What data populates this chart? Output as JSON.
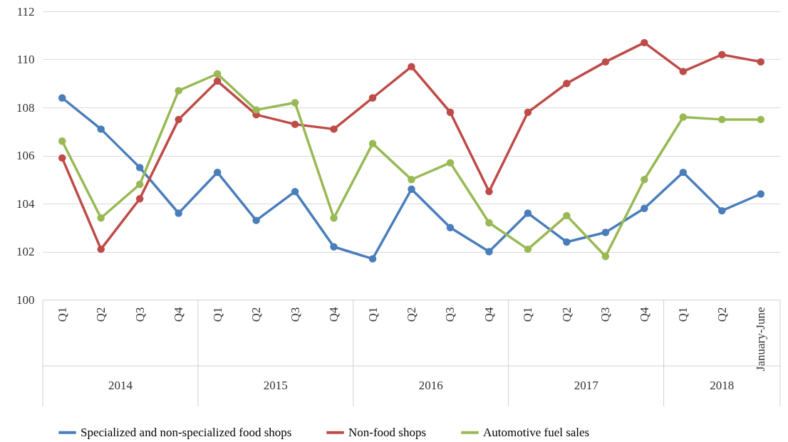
{
  "chart_data": {
    "type": "line",
    "categories": [
      "Q1",
      "Q2",
      "Q3",
      "Q4",
      "Q1",
      "Q2",
      "Q3",
      "Q4",
      "Q1",
      "Q2",
      "Q3",
      "Q4",
      "Q1",
      "Q2",
      "Q3",
      "Q4",
      "Q1",
      "Q2",
      "January-June"
    ],
    "annotations": [
      "2014",
      "2015",
      "2016",
      "2017",
      "2018"
    ],
    "series": [
      {
        "name": "Specialized and non-specialized food shops",
        "color": "#4a7ebb",
        "values": [
          108.4,
          107.1,
          105.5,
          103.6,
          105.3,
          103.3,
          104.5,
          102.2,
          101.7,
          104.6,
          103.0,
          102.0,
          103.6,
          102.4,
          102.8,
          103.8,
          105.3,
          103.7,
          104.4
        ]
      },
      {
        "name": "Non-food shops",
        "color": "#be4b48",
        "values": [
          105.9,
          102.1,
          104.2,
          107.5,
          109.1,
          107.7,
          107.3,
          107.1,
          108.4,
          109.7,
          107.8,
          104.5,
          107.8,
          109.0,
          109.9,
          110.7,
          109.5,
          110.2,
          109.9
        ]
      },
      {
        "name": "Automotive fuel sales",
        "color": "#98b954",
        "values": [
          106.6,
          103.4,
          104.8,
          108.7,
          109.4,
          107.9,
          108.2,
          103.4,
          106.5,
          105.0,
          105.7,
          103.2,
          102.1,
          103.5,
          101.8,
          105.0,
          107.6,
          107.5,
          107.5
        ]
      }
    ],
    "ylim": [
      100,
      112
    ],
    "yticks": [
      100,
      102,
      104,
      106,
      108,
      110,
      112
    ],
    "grid": "y",
    "legend": "bottom",
    "marker": "circle",
    "line_style": "solid"
  }
}
